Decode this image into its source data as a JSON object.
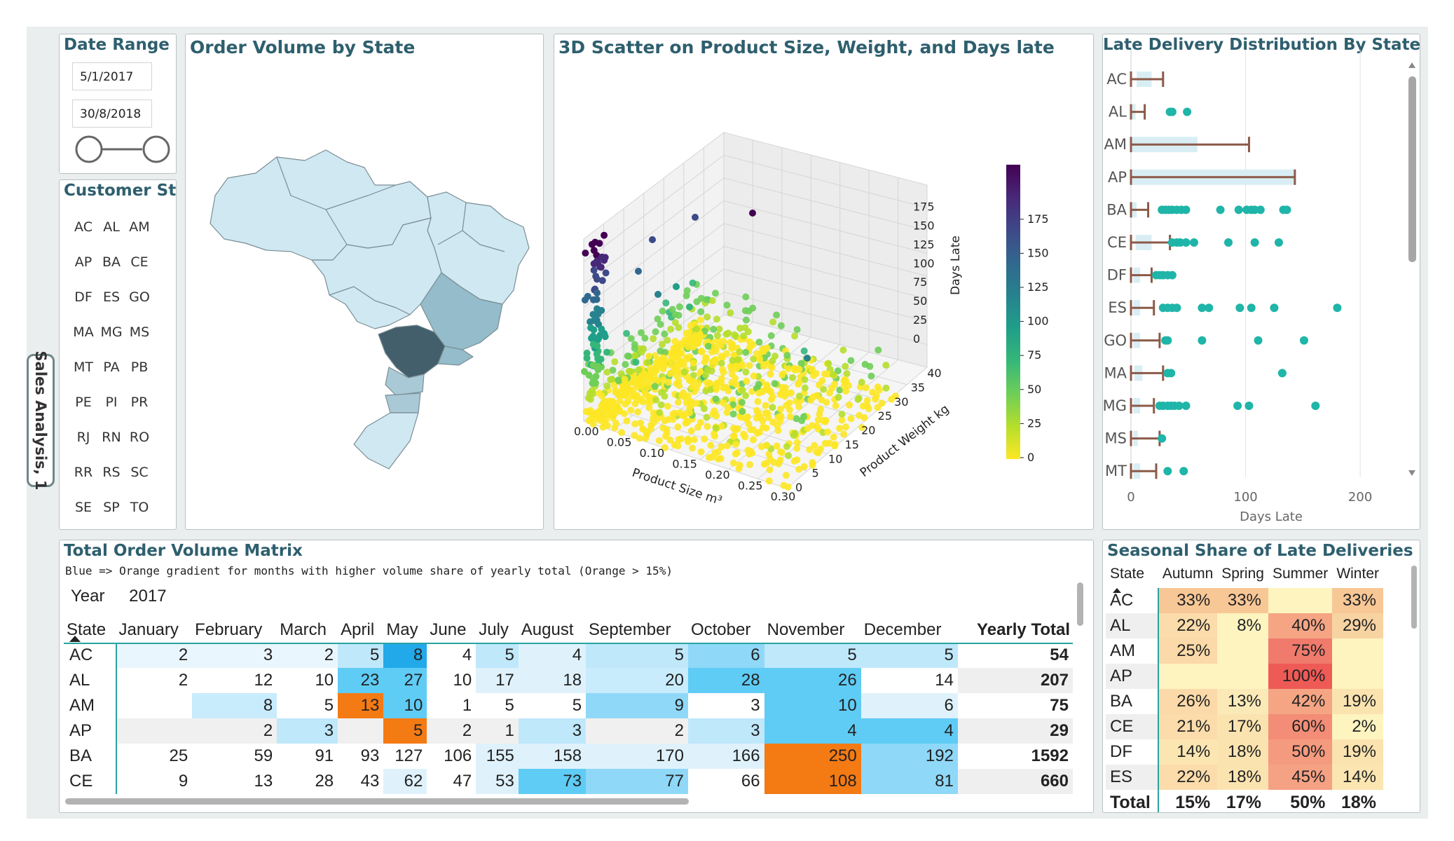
{
  "sidebar_tab": "Sales Analysis, 1",
  "date_range": {
    "title": "Date Range",
    "start": "5/1/2017",
    "end": "30/8/2018"
  },
  "customer_state": {
    "title": "Customer State",
    "states": [
      "AC",
      "AL",
      "AM",
      "AP",
      "BA",
      "CE",
      "DF",
      "ES",
      "GO",
      "MA",
      "MG",
      "MS",
      "MT",
      "PA",
      "PB",
      "PE",
      "PI",
      "PR",
      "RJ",
      "RN",
      "RO",
      "RR",
      "RS",
      "SC",
      "SE",
      "SP",
      "TO"
    ]
  },
  "map_panel": {
    "title": "Order Volume by State"
  },
  "scatter_panel": {
    "title": "3D Scatter on Product Size, Weight, and Days late",
    "x_label": "Product Size m³",
    "y_label": "Product Weight kg",
    "z_label": "Days Late",
    "x_ticks": [
      "0.00",
      "0.05",
      "0.10",
      "0.15",
      "0.20",
      "0.25",
      "0.30"
    ],
    "y_ticks": [
      "0",
      "5",
      "10",
      "15",
      "20",
      "25",
      "30",
      "35",
      "40"
    ],
    "z_ticks": [
      "0",
      "25",
      "50",
      "75",
      "100",
      "125",
      "150",
      "175"
    ],
    "colorbar_ticks": [
      "0",
      "25",
      "50",
      "75",
      "100",
      "125",
      "150",
      "175"
    ]
  },
  "boxplot_panel": {
    "title": "Late Delivery Distribution By State",
    "x_label": "Days Late",
    "x_ticks": [
      "0",
      "100",
      "200"
    ],
    "colors": {
      "box": "#d9eef4",
      "whisker": "#8b5a48",
      "outlier": "#1fb5a8"
    }
  },
  "chart_data": {
    "type": "box",
    "title": "Late Delivery Distribution By State",
    "xlabel": "Days Late",
    "xlim": [
      0,
      225
    ],
    "categories": [
      "AC",
      "AL",
      "AM",
      "AP",
      "BA",
      "CE",
      "DF",
      "ES",
      "GO",
      "MA",
      "MG",
      "MS",
      "MT"
    ],
    "boxes": [
      {
        "state": "AC",
        "min": 0,
        "q1": 5,
        "q3": 18,
        "max": 28,
        "outliers": []
      },
      {
        "state": "AL",
        "min": 0,
        "q1": 1,
        "q3": 4,
        "max": 12,
        "outliers": [
          34,
          36,
          49
        ]
      },
      {
        "state": "AM",
        "min": 0,
        "q1": 1,
        "q3": 58,
        "max": 103,
        "outliers": []
      },
      {
        "state": "AP",
        "min": 0,
        "q1": 1,
        "q3": 143,
        "max": 143,
        "outliers": []
      },
      {
        "state": "BA",
        "min": 0,
        "q1": 1,
        "q3": 5,
        "max": 15,
        "outliers": [
          27,
          30,
          33,
          36,
          40,
          44,
          48,
          78,
          94,
          101,
          105,
          108,
          113,
          133,
          136
        ]
      },
      {
        "state": "CE",
        "min": 0,
        "q1": 4,
        "q3": 18,
        "max": 34,
        "outliers": [
          36,
          40,
          43,
          48,
          55,
          85,
          108,
          129
        ]
      },
      {
        "state": "DF",
        "min": 0,
        "q1": 2,
        "q3": 8,
        "max": 18,
        "outliers": [
          22,
          25,
          28,
          32,
          36
        ]
      },
      {
        "state": "ES",
        "min": 0,
        "q1": 2,
        "q3": 8,
        "max": 20,
        "outliers": [
          28,
          32,
          36,
          40,
          62,
          68,
          95,
          105,
          125,
          180
        ]
      },
      {
        "state": "GO",
        "min": 0,
        "q1": 2,
        "q3": 8,
        "max": 25,
        "outliers": [
          30,
          32,
          62,
          111,
          151
        ]
      },
      {
        "state": "MA",
        "min": 0,
        "q1": 3,
        "q3": 10,
        "max": 28,
        "outliers": [
          32,
          35,
          132
        ]
      },
      {
        "state": "MG",
        "min": 0,
        "q1": 2,
        "q3": 8,
        "max": 20,
        "outliers": [
          25,
          28,
          32,
          35,
          38,
          42,
          48,
          93,
          103,
          161
        ]
      },
      {
        "state": "MS",
        "min": 0,
        "q1": 2,
        "q3": 6,
        "max": 25,
        "outliers": [
          27
        ]
      },
      {
        "state": "MT",
        "min": 0,
        "q1": 2,
        "q3": 8,
        "max": 22,
        "outliers": [
          32,
          46
        ]
      }
    ]
  },
  "matrix": {
    "title": "Total Order Volume Matrix",
    "subtitle": "Blue => Orange gradient for months with higher volume share of yearly total (Orange > 15%)",
    "year_label": "Year",
    "year_value": "2017",
    "columns": [
      "State",
      "January",
      "February",
      "March",
      "April",
      "May",
      "June",
      "July",
      "August",
      "September",
      "October",
      "November",
      "December",
      "Yearly Total"
    ],
    "rows": [
      {
        "state": "AC",
        "values": [
          "2",
          "3",
          "2",
          "5",
          "8",
          "4",
          "5",
          "4",
          "5",
          "6",
          "5",
          "5"
        ],
        "colors": [
          "#eaf6fd",
          "#eaf6fd",
          "#eaf6fd",
          "#bfe8fb",
          "#22a9ea",
          "#ffffff",
          "#bfe8fb",
          "#dff2fc",
          "#bfe8fb",
          "#8fd8f8",
          "#bfe8fb",
          "#bfe8fb"
        ],
        "total": "54"
      },
      {
        "state": "AL",
        "values": [
          "2",
          "12",
          "10",
          "23",
          "27",
          "10",
          "17",
          "18",
          "20",
          "28",
          "26",
          "14"
        ],
        "colors": [
          "#ffffff",
          "#ffffff",
          "#ffffff",
          "#5fccf5",
          "#5fccf5",
          "#ffffff",
          "#dff2fc",
          "#dff2fc",
          "#c8ecfb",
          "#5fccf5",
          "#5fccf5",
          "#ffffff"
        ],
        "total": "207"
      },
      {
        "state": "AM",
        "values": [
          "",
          "8",
          "5",
          "13",
          "10",
          "1",
          "5",
          "5",
          "9",
          "3",
          "10",
          "6"
        ],
        "colors": [
          "#ffffff",
          "#c8ecfb",
          "#ffffff",
          "#f47a14",
          "#5fccf5",
          "#ffffff",
          "#ffffff",
          "#ffffff",
          "#8fd8f8",
          "#ffffff",
          "#5fccf5",
          "#dff2fc"
        ],
        "total": "75"
      },
      {
        "state": "AP",
        "values": [
          "",
          "2",
          "3",
          "",
          "5",
          "2",
          "1",
          "3",
          "2",
          "3",
          "4",
          "4"
        ],
        "colors": [
          "#f0f0f0",
          "#f0f0f0",
          "#bfe8fb",
          "#f0f0f0",
          "#f47a14",
          "#f0f0f0",
          "#f0f0f0",
          "#bfe8fb",
          "#f0f0f0",
          "#bfe8fb",
          "#5fccf5",
          "#5fccf5"
        ],
        "total": "29"
      },
      {
        "state": "BA",
        "values": [
          "25",
          "59",
          "91",
          "93",
          "127",
          "106",
          "155",
          "158",
          "170",
          "166",
          "250",
          "192"
        ],
        "colors": [
          "#ffffff",
          "#ffffff",
          "#ffffff",
          "#ffffff",
          "#ffffff",
          "#ffffff",
          "#dff2fc",
          "#dff2fc",
          "#dff2fc",
          "#dff2fc",
          "#f47a14",
          "#8fd8f8"
        ],
        "total": "1592"
      },
      {
        "state": "CE",
        "values": [
          "9",
          "13",
          "28",
          "43",
          "62",
          "47",
          "53",
          "73",
          "77",
          "66",
          "108",
          "81"
        ],
        "colors": [
          "#ffffff",
          "#ffffff",
          "#ffffff",
          "#ffffff",
          "#dff2fc",
          "#ffffff",
          "#dff2fc",
          "#5fccf5",
          "#8fd8f8",
          "#ffffff",
          "#f47a14",
          "#8fd8f8"
        ],
        "total": "660"
      }
    ]
  },
  "seasonal": {
    "title": "Seasonal Share of Late Deliveries",
    "columns": [
      "State",
      "Autumn",
      "Spring",
      "Summer",
      "Winter"
    ],
    "rows": [
      {
        "state": "AC",
        "values": [
          "33%",
          "33%",
          "",
          "33%"
        ],
        "colors": [
          "#f8c796",
          "#f8c796",
          "#fdf4c0",
          "#f8c796"
        ]
      },
      {
        "state": "AL",
        "values": [
          "22%",
          "8%",
          "40%",
          "29%"
        ],
        "colors": [
          "#fbdcaa",
          "#fdf4c0",
          "#f5a584",
          "#f8d3a2"
        ]
      },
      {
        "state": "AM",
        "values": [
          "25%",
          "",
          "75%",
          ""
        ],
        "colors": [
          "#fbd9a8",
          "#fdf4c0",
          "#f07a6c",
          "#fdf4c0"
        ]
      },
      {
        "state": "AP",
        "values": [
          "",
          "",
          "100%",
          ""
        ],
        "colors": [
          "#fdf4c0",
          "#fdf4c0",
          "#ee5a56",
          "#fdf4c0"
        ]
      },
      {
        "state": "BA",
        "values": [
          "26%",
          "13%",
          "42%",
          "19%"
        ],
        "colors": [
          "#fbd9a8",
          "#fbeab8",
          "#f5a584",
          "#fbe3b0"
        ]
      },
      {
        "state": "CE",
        "values": [
          "21%",
          "17%",
          "60%",
          "2%"
        ],
        "colors": [
          "#fbdcaa",
          "#fbe3b0",
          "#f38d77",
          "#fdf4c0"
        ]
      },
      {
        "state": "DF",
        "values": [
          "14%",
          "18%",
          "50%",
          "19%"
        ],
        "colors": [
          "#fbe6b2",
          "#fbe3b0",
          "#f49a7e",
          "#fbe3b0"
        ]
      },
      {
        "state": "ES",
        "values": [
          "22%",
          "18%",
          "45%",
          "14%"
        ],
        "colors": [
          "#fbdcaa",
          "#fbe3b0",
          "#f5a184",
          "#fbe6b2"
        ]
      }
    ],
    "total": {
      "label": "Total",
      "values": [
        "15%",
        "17%",
        "50%",
        "18%"
      ]
    }
  }
}
